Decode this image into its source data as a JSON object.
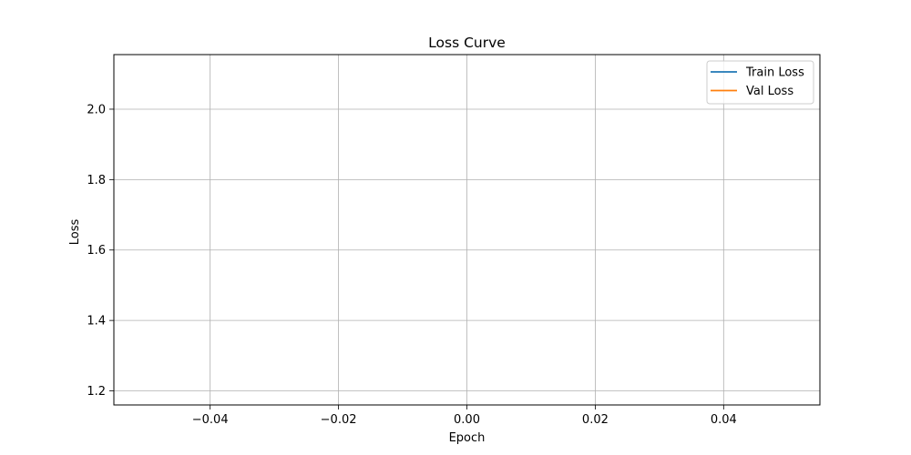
{
  "chart_data": {
    "type": "line",
    "title": "Loss Curve",
    "xlabel": "Epoch",
    "ylabel": "Loss",
    "xlim": [
      -0.055,
      0.055
    ],
    "ylim": [
      1.16,
      2.155
    ],
    "xticks": [
      -0.04,
      -0.02,
      0.0,
      0.02,
      0.04
    ],
    "xtick_labels": [
      "−0.04",
      "−0.02",
      "0.00",
      "0.02",
      "0.04"
    ],
    "yticks": [
      1.2,
      1.4,
      1.6,
      1.8,
      2.0
    ],
    "ytick_labels": [
      "1.2",
      "1.4",
      "1.6",
      "1.8",
      "2.0"
    ],
    "grid": true,
    "legend_position": "top-right",
    "series": [
      {
        "name": "Train Loss",
        "color": "#1f77b4",
        "x": [],
        "y": []
      },
      {
        "name": "Val Loss",
        "color": "#ff7f0e",
        "x": [],
        "y": []
      }
    ]
  }
}
